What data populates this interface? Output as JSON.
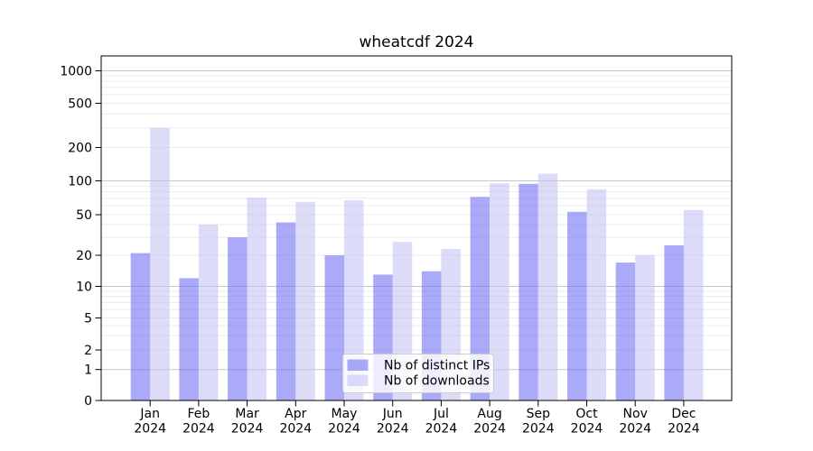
{
  "title": "wheatcdf 2024",
  "colors": {
    "ips_bar": "rgba(118,118,244,0.62)",
    "downloads_bar": "rgba(198,198,245,0.62)",
    "grid_major": "#c6c6c6",
    "grid_minor": "#ebebeb",
    "axis": "#000000",
    "legend_border": "#cccccc",
    "legend_bg": "rgba(255,255,255,0.8)"
  },
  "legend": {
    "items": [
      {
        "label": "Nb of distinct IPs",
        "color_key": "ips_bar"
      },
      {
        "label": "Nb of downloads",
        "color_key": "downloads_bar"
      }
    ],
    "position": "lower center"
  },
  "chart_data": {
    "type": "bar",
    "title": "wheatcdf 2024",
    "categories": [
      "Jan 2024",
      "Feb 2024",
      "Mar 2024",
      "Apr 2024",
      "May 2024",
      "Jun 2024",
      "Jul 2024",
      "Aug 2024",
      "Sep 2024",
      "Oct 2024",
      "Nov 2024",
      "Dec 2024"
    ],
    "series": [
      {
        "name": "Nb of distinct IPs",
        "values": [
          21,
          12,
          30,
          42,
          20,
          13,
          14,
          72,
          94,
          53,
          17,
          25
        ]
      },
      {
        "name": "Nb of downloads",
        "values": [
          300,
          40,
          71,
          65,
          67,
          27,
          23,
          95,
          116,
          84,
          20,
          55
        ]
      }
    ],
    "xlabel": "",
    "ylabel": "",
    "yscale": "asinh-log",
    "yticks": [
      0,
      1,
      2,
      5,
      10,
      20,
      50,
      100,
      200,
      500,
      1000
    ],
    "ylim": [
      0,
      1500
    ],
    "grid": "horizontal",
    "legend_position": "lower center"
  }
}
